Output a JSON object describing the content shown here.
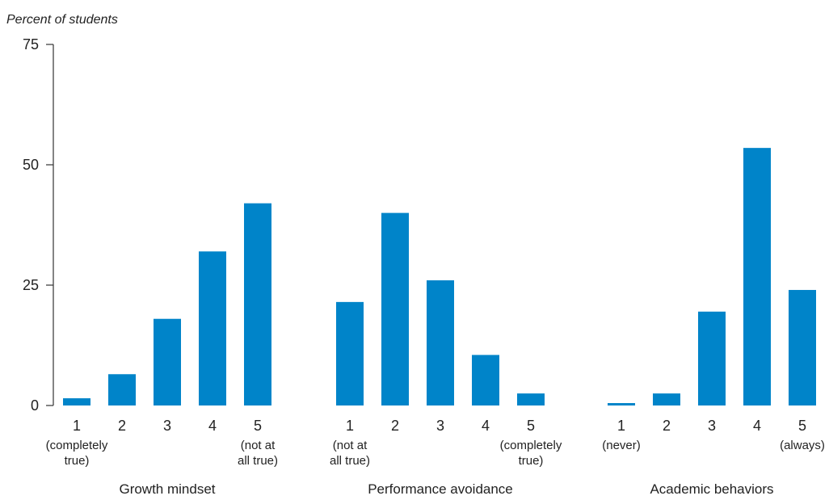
{
  "chart_data": {
    "type": "bar",
    "ylabel": "Percent of students",
    "xlabel": "",
    "ylim": [
      0,
      75
    ],
    "yticks": [
      0,
      25,
      50,
      75
    ],
    "grid": false,
    "bar_color": "#0084c9",
    "groups": [
      {
        "name": "Growth mindset",
        "categories": [
          {
            "label": "1",
            "sub": [
              "(completely",
              "true)"
            ]
          },
          {
            "label": "2",
            "sub": []
          },
          {
            "label": "3",
            "sub": []
          },
          {
            "label": "4",
            "sub": []
          },
          {
            "label": "5",
            "sub": [
              "(not at",
              "all true)"
            ]
          }
        ],
        "values": [
          1.5,
          6.5,
          18,
          32,
          42
        ]
      },
      {
        "name": "Performance avoidance",
        "categories": [
          {
            "label": "1",
            "sub": [
              "(not at",
              "all true)"
            ]
          },
          {
            "label": "2",
            "sub": []
          },
          {
            "label": "3",
            "sub": []
          },
          {
            "label": "4",
            "sub": []
          },
          {
            "label": "5",
            "sub": [
              "(completely",
              "true)"
            ]
          }
        ],
        "values": [
          21.5,
          40,
          26,
          10.5,
          2.5
        ]
      },
      {
        "name": "Academic behaviors",
        "categories": [
          {
            "label": "1",
            "sub": [
              "(never)"
            ]
          },
          {
            "label": "2",
            "sub": []
          },
          {
            "label": "3",
            "sub": []
          },
          {
            "label": "4",
            "sub": []
          },
          {
            "label": "5",
            "sub": [
              "(always)"
            ]
          }
        ],
        "values": [
          0.5,
          2.5,
          19.5,
          53.5,
          24
        ]
      }
    ]
  }
}
